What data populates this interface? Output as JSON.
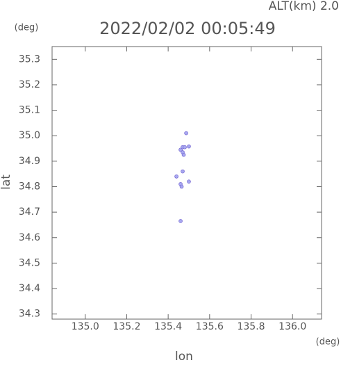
{
  "chart_data": {
    "type": "scatter",
    "title": "2022/02/02 00:05:49",
    "annotation": "ALT(km) 2.0",
    "y_unit": "(deg)",
    "x_unit": "(deg)",
    "xlabel": "lon",
    "ylabel": "lat",
    "xlim": [
      134.84,
      136.14
    ],
    "ylim": [
      34.28,
      35.35
    ],
    "xticks": [
      {
        "value": 135.0,
        "label": "135.0"
      },
      135.2,
      135.4,
      135.6,
      135.8,
      {
        "value": 136.0,
        "label": "136.0"
      }
    ],
    "yticks": [
      34.3,
      34.4,
      34.5,
      34.6,
      34.7,
      34.8,
      34.9,
      {
        "value": 35.0,
        "label": "35.0"
      },
      35.1,
      35.2,
      35.3
    ],
    "grid": false,
    "series": [
      {
        "color": "#a8a8f0",
        "x": [
          135.47,
          135.46,
          135.48,
          135.47,
          135.475,
          135.5,
          135.487,
          135.47,
          135.44,
          135.46,
          135.465,
          135.5,
          135.46
        ],
        "y": [
          34.955,
          34.945,
          34.955,
          34.935,
          34.925,
          34.958,
          35.01,
          34.86,
          34.84,
          34.81,
          34.8,
          34.82,
          34.665
        ]
      }
    ]
  }
}
